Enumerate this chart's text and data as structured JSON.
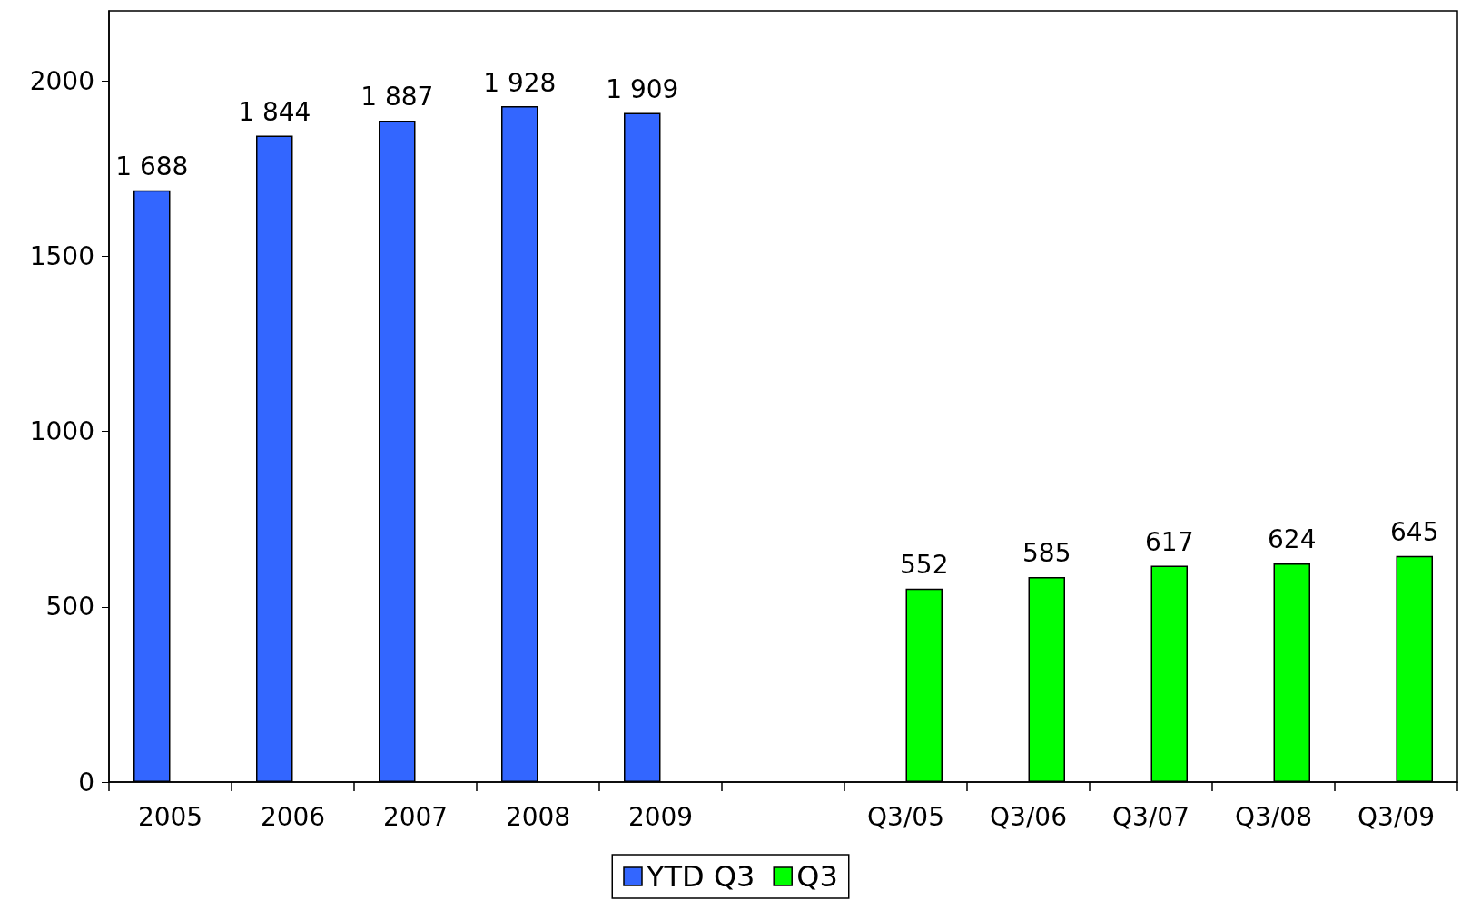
{
  "chart_data": {
    "type": "bar",
    "categories": [
      "2005",
      "2006",
      "2007",
      "2008",
      "2009",
      null,
      "Q3/05",
      "Q3/06",
      "Q3/07",
      "Q3/08",
      "Q3/09"
    ],
    "series": [
      {
        "name": "YTD Q3",
        "color": "#3366ff",
        "values": [
          1688,
          1844,
          1887,
          1928,
          1909,
          null,
          null,
          null,
          null,
          null,
          null
        ],
        "value_labels": [
          "1 688",
          "1 844",
          "1 887",
          "1 928",
          "1 909",
          null,
          null,
          null,
          null,
          null,
          null
        ]
      },
      {
        "name": "Q3",
        "color": "#00ff00",
        "values": [
          null,
          null,
          null,
          null,
          null,
          null,
          552,
          585,
          617,
          624,
          645
        ],
        "value_labels": [
          null,
          null,
          null,
          null,
          null,
          null,
          "552",
          "585",
          "617",
          "624",
          "645"
        ]
      }
    ],
    "ylim": [
      0,
      2200
    ],
    "yticks": [
      0,
      500,
      1000,
      1500,
      2000
    ],
    "grid": false,
    "legend": "bottom"
  }
}
